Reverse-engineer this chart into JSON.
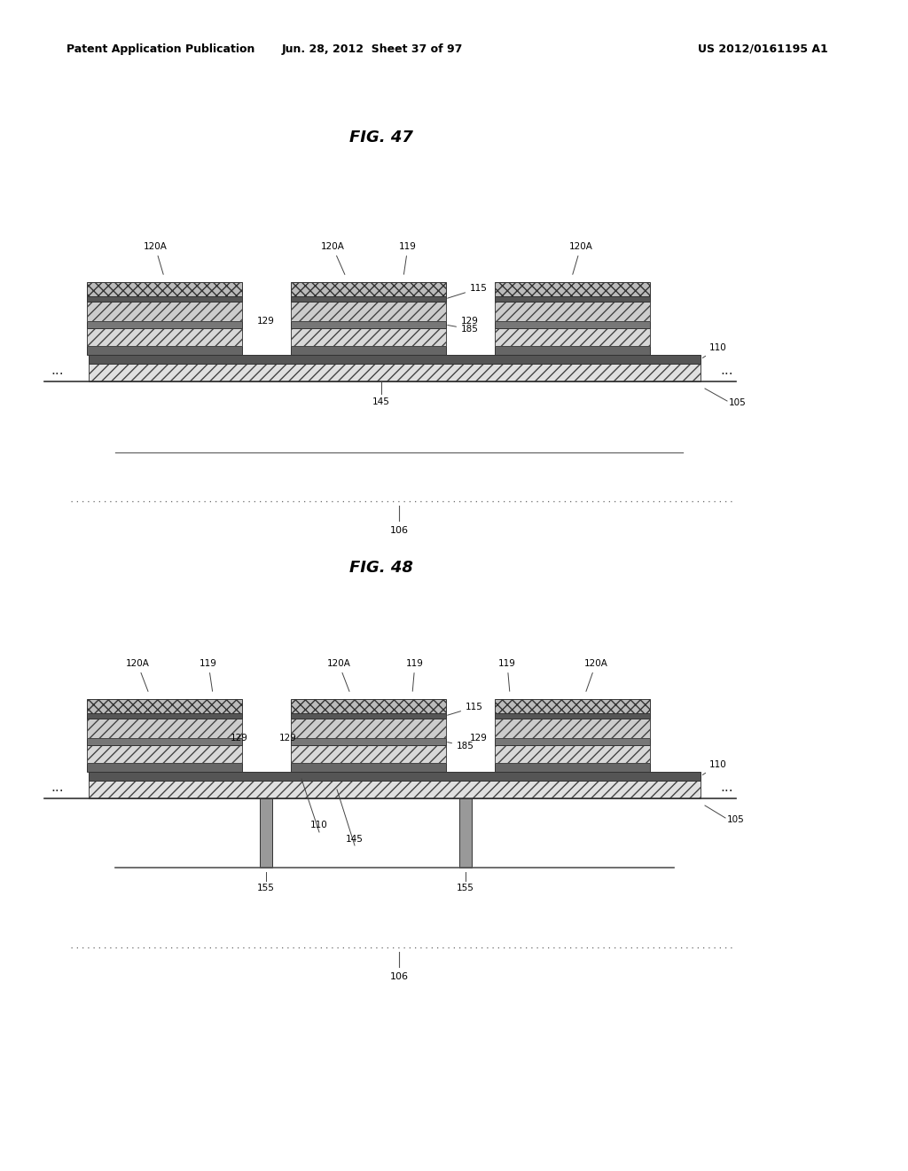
{
  "header_left": "Patent Application Publication",
  "header_mid": "Jun. 28, 2012  Sheet 37 of 97",
  "header_right": "US 2012/0161195 A1",
  "fig47_title": "FIG. 47",
  "fig48_title": "FIG. 48",
  "bg_color": "#ffffff",
  "text_color": "#000000"
}
